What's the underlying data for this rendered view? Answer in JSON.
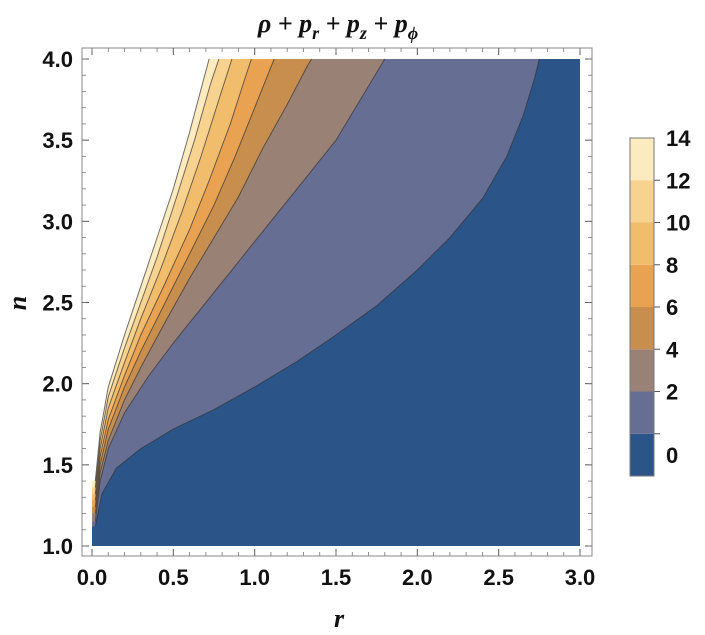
{
  "chart_data": {
    "type": "contour",
    "title": "ρ + p_r + p_z + p_ϕ",
    "title_parts": {
      "rho": "ρ",
      "plus": " + ",
      "p": "p",
      "sub_r": "r",
      "sub_z": "z",
      "sub_phi": "ϕ"
    },
    "xlabel": "r",
    "ylabel": "n",
    "xlim": [
      0.0,
      3.0
    ],
    "ylim": [
      1.0,
      4.0
    ],
    "x_ticks": [
      {
        "value": 0.0,
        "label": "0.0"
      },
      {
        "value": 0.5,
        "label": "0.5"
      },
      {
        "value": 1.0,
        "label": "1.0"
      },
      {
        "value": 1.5,
        "label": "1.5"
      },
      {
        "value": 2.0,
        "label": "2.0"
      },
      {
        "value": 2.5,
        "label": "2.5"
      },
      {
        "value": 3.0,
        "label": "3.0"
      }
    ],
    "y_ticks": [
      {
        "value": 1.0,
        "label": "1.0"
      },
      {
        "value": 1.5,
        "label": "1.5"
      },
      {
        "value": 2.0,
        "label": "2.0"
      },
      {
        "value": 2.5,
        "label": "2.5"
      },
      {
        "value": 3.0,
        "label": "3.0"
      },
      {
        "value": 3.5,
        "label": "3.5"
      },
      {
        "value": 4.0,
        "label": "4.0"
      }
    ],
    "grid": false,
    "legend_placement": "right",
    "levels": [
      {
        "label": "0",
        "color": "#2b5489"
      },
      {
        "label": "2",
        "color": "#676e94"
      },
      {
        "label": "4",
        "color": "#998176"
      },
      {
        "label": "6",
        "color": "#c78e4e"
      },
      {
        "label": "8",
        "color": "#e9a252"
      },
      {
        "label": "10",
        "color": "#f2bc6d"
      },
      {
        "label": "12",
        "color": "#f8d28f"
      },
      {
        "label": "14",
        "color": "#fdebc0"
      }
    ],
    "contours": [
      {
        "level": 0,
        "points": [
          [
            0.02,
            1.12
          ],
          [
            0.06,
            1.32
          ],
          [
            0.15,
            1.48
          ],
          [
            0.3,
            1.6
          ],
          [
            0.5,
            1.72
          ],
          [
            0.75,
            1.84
          ],
          [
            1.0,
            1.98
          ],
          [
            1.25,
            2.13
          ],
          [
            1.5,
            2.3
          ],
          [
            1.75,
            2.48
          ],
          [
            2.0,
            2.7
          ],
          [
            2.2,
            2.9
          ],
          [
            2.4,
            3.14
          ],
          [
            2.55,
            3.4
          ],
          [
            2.65,
            3.65
          ],
          [
            2.72,
            3.88
          ],
          [
            2.75,
            4.0
          ]
        ]
      },
      {
        "level": 2,
        "points": [
          [
            0.02,
            1.15
          ],
          [
            0.05,
            1.4
          ],
          [
            0.1,
            1.6
          ],
          [
            0.2,
            1.82
          ],
          [
            0.35,
            2.05
          ],
          [
            0.5,
            2.25
          ],
          [
            0.7,
            2.5
          ],
          [
            0.9,
            2.75
          ],
          [
            1.1,
            3.0
          ],
          [
            1.3,
            3.25
          ],
          [
            1.5,
            3.5
          ],
          [
            1.65,
            3.75
          ],
          [
            1.8,
            4.0
          ]
        ]
      },
      {
        "level": 4,
        "points": [
          [
            0.02,
            1.2
          ],
          [
            0.05,
            1.45
          ],
          [
            0.1,
            1.65
          ],
          [
            0.2,
            1.9
          ],
          [
            0.3,
            2.1
          ],
          [
            0.45,
            2.38
          ],
          [
            0.6,
            2.65
          ],
          [
            0.75,
            2.9
          ],
          [
            0.9,
            3.15
          ],
          [
            1.05,
            3.45
          ],
          [
            1.2,
            3.72
          ],
          [
            1.32,
            3.95
          ],
          [
            1.35,
            4.0
          ]
        ]
      },
      {
        "level": 6,
        "points": [
          [
            0.02,
            1.24
          ],
          [
            0.05,
            1.5
          ],
          [
            0.1,
            1.72
          ],
          [
            0.2,
            1.98
          ],
          [
            0.3,
            2.2
          ],
          [
            0.45,
            2.5
          ],
          [
            0.6,
            2.8
          ],
          [
            0.75,
            3.1
          ],
          [
            0.88,
            3.4
          ],
          [
            1.0,
            3.7
          ],
          [
            1.1,
            3.95
          ],
          [
            1.12,
            4.0
          ]
        ]
      },
      {
        "level": 8,
        "points": [
          [
            0.02,
            1.28
          ],
          [
            0.05,
            1.55
          ],
          [
            0.1,
            1.78
          ],
          [
            0.2,
            2.05
          ],
          [
            0.3,
            2.3
          ],
          [
            0.45,
            2.62
          ],
          [
            0.6,
            2.95
          ],
          [
            0.72,
            3.25
          ],
          [
            0.85,
            3.6
          ],
          [
            0.94,
            3.88
          ],
          [
            0.98,
            4.0
          ]
        ]
      },
      {
        "level": 10,
        "points": [
          [
            0.02,
            1.32
          ],
          [
            0.05,
            1.6
          ],
          [
            0.1,
            1.85
          ],
          [
            0.2,
            2.13
          ],
          [
            0.3,
            2.4
          ],
          [
            0.42,
            2.7
          ],
          [
            0.55,
            3.05
          ],
          [
            0.67,
            3.4
          ],
          [
            0.78,
            3.75
          ],
          [
            0.86,
            4.0
          ]
        ]
      },
      {
        "level": 12,
        "points": [
          [
            0.02,
            1.36
          ],
          [
            0.05,
            1.65
          ],
          [
            0.1,
            1.92
          ],
          [
            0.2,
            2.22
          ],
          [
            0.3,
            2.5
          ],
          [
            0.4,
            2.78
          ],
          [
            0.52,
            3.15
          ],
          [
            0.63,
            3.5
          ],
          [
            0.73,
            3.85
          ],
          [
            0.78,
            4.0
          ]
        ]
      },
      {
        "level": 14,
        "points": [
          [
            0.02,
            1.4
          ],
          [
            0.05,
            1.7
          ],
          [
            0.1,
            1.98
          ],
          [
            0.2,
            2.3
          ],
          [
            0.3,
            2.6
          ],
          [
            0.4,
            2.9
          ],
          [
            0.5,
            3.2
          ],
          [
            0.6,
            3.55
          ],
          [
            0.68,
            3.85
          ],
          [
            0.72,
            4.0
          ]
        ]
      }
    ]
  }
}
